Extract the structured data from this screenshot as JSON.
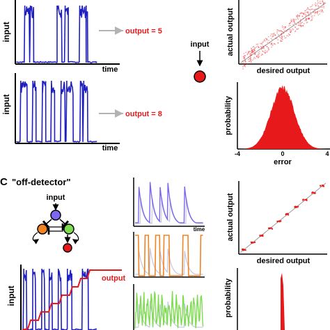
{
  "panel_a": {
    "top": {
      "ylabel": "input",
      "xlabel": "time",
      "output_text": "output = 5"
    },
    "bottom": {
      "ylabel": "input",
      "xlabel": "time",
      "output_text": "output = 8"
    },
    "neuron_label": "input",
    "scatter": {
      "xlabel": "desired output",
      "ylabel": "actual output"
    },
    "hist": {
      "xlabel": "error",
      "ylabel": "probability",
      "ticks": [
        "-4",
        "0",
        "4"
      ]
    }
  },
  "panel_c": {
    "letter": "C",
    "title": "\"off-detector\"",
    "network_input_label": "input",
    "trace_ylabel": "input",
    "output_label": "output",
    "small_xlabel": "time",
    "scatter": {
      "xlabel": "desired output",
      "ylabel": "actual output"
    },
    "hist": {
      "ylabel": "probability"
    }
  },
  "colors": {
    "trace": "#1f1fbf",
    "output": "#e8191b",
    "purple": "#7b68ee",
    "orange": "#f28322",
    "green": "#7ddc4f",
    "gray_arrow": "#b3b3b3",
    "ghost": "#c9c9e6"
  }
}
